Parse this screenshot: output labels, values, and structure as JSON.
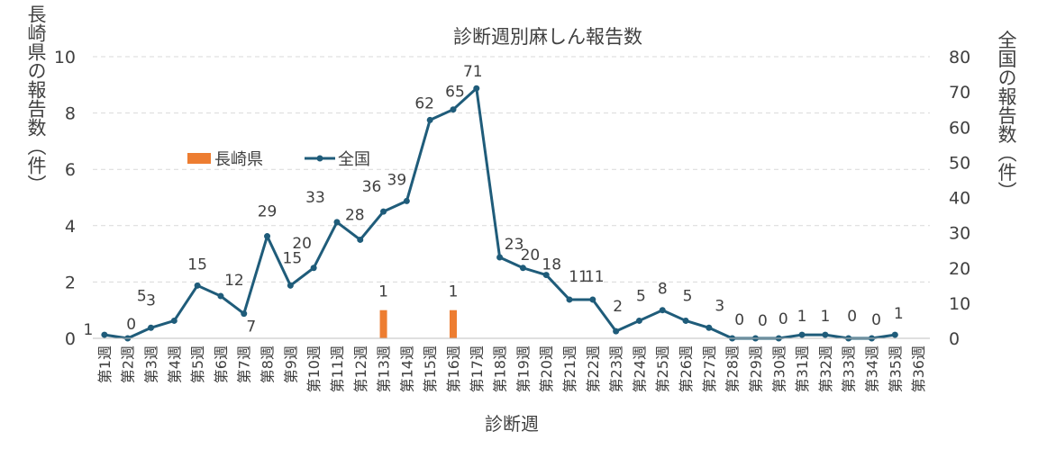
{
  "chart_data": {
    "type": "bar+line",
    "title": "診断週別麻しん報告数",
    "xlabel": "診断週",
    "ylabel_left": "長崎県の報告数（件）",
    "ylabel_right": "全国の報告数（件）",
    "legend_position": "upper-left",
    "grid": true,
    "ylim_left": [
      0,
      10
    ],
    "yticks_left": [
      "0",
      "2",
      "4",
      "6",
      "8",
      "10"
    ],
    "ylim_right": [
      0,
      80
    ],
    "yticks_right": [
      "0",
      "10",
      "20",
      "30",
      "40",
      "50",
      "60",
      "70",
      "80"
    ],
    "categories": [
      "第1週",
      "第2週",
      "第3週",
      "第4週",
      "第5週",
      "第6週",
      "第7週",
      "第8週",
      "第9週",
      "第10週",
      "第11週",
      "第12週",
      "第13週",
      "第14週",
      "第15週",
      "第16週",
      "第17週",
      "第18週",
      "第19週",
      "第20週",
      "第21週",
      "第22週",
      "第23週",
      "第24週",
      "第25週",
      "第26週",
      "第27週",
      "第28週",
      "第29週",
      "第30週",
      "第31週",
      "第32週",
      "第33週",
      "第34週",
      "第35週",
      "第36週"
    ],
    "series": [
      {
        "name": "長崎県",
        "type": "bar",
        "axis": "left",
        "color": "#ED7D31",
        "values": [
          0,
          0,
          0,
          0,
          0,
          0,
          0,
          0,
          0,
          0,
          0,
          0,
          1,
          0,
          0,
          1,
          0,
          0,
          0,
          0,
          0,
          0,
          0,
          0,
          0,
          0,
          0,
          0,
          0,
          0,
          0,
          0,
          0,
          0,
          0,
          null
        ],
        "data_labels": [
          {
            "index": 12,
            "text": "1"
          },
          {
            "index": 15,
            "text": "1"
          }
        ]
      },
      {
        "name": "全国",
        "type": "line",
        "axis": "right",
        "color": "#1F5C7A",
        "values": [
          1,
          0,
          3,
          5,
          15,
          12,
          7,
          29,
          15,
          20,
          33,
          28,
          36,
          39,
          62,
          65,
          71,
          23,
          20,
          18,
          11,
          11,
          2,
          5,
          8,
          5,
          3,
          0,
          0,
          0,
          1,
          1,
          0,
          0,
          1,
          null
        ],
        "data_labels": [
          "1",
          "0",
          "3",
          "5",
          "15",
          "12",
          "7",
          "29",
          "15",
          "20",
          "33",
          "28",
          "36",
          "39",
          "62",
          "65",
          "71",
          "23",
          "20",
          "18",
          "11",
          "11",
          "2",
          "5",
          "8",
          "5",
          "3",
          "0",
          "0",
          "0",
          "1",
          "1",
          "0",
          "0",
          "1",
          ""
        ]
      }
    ]
  }
}
